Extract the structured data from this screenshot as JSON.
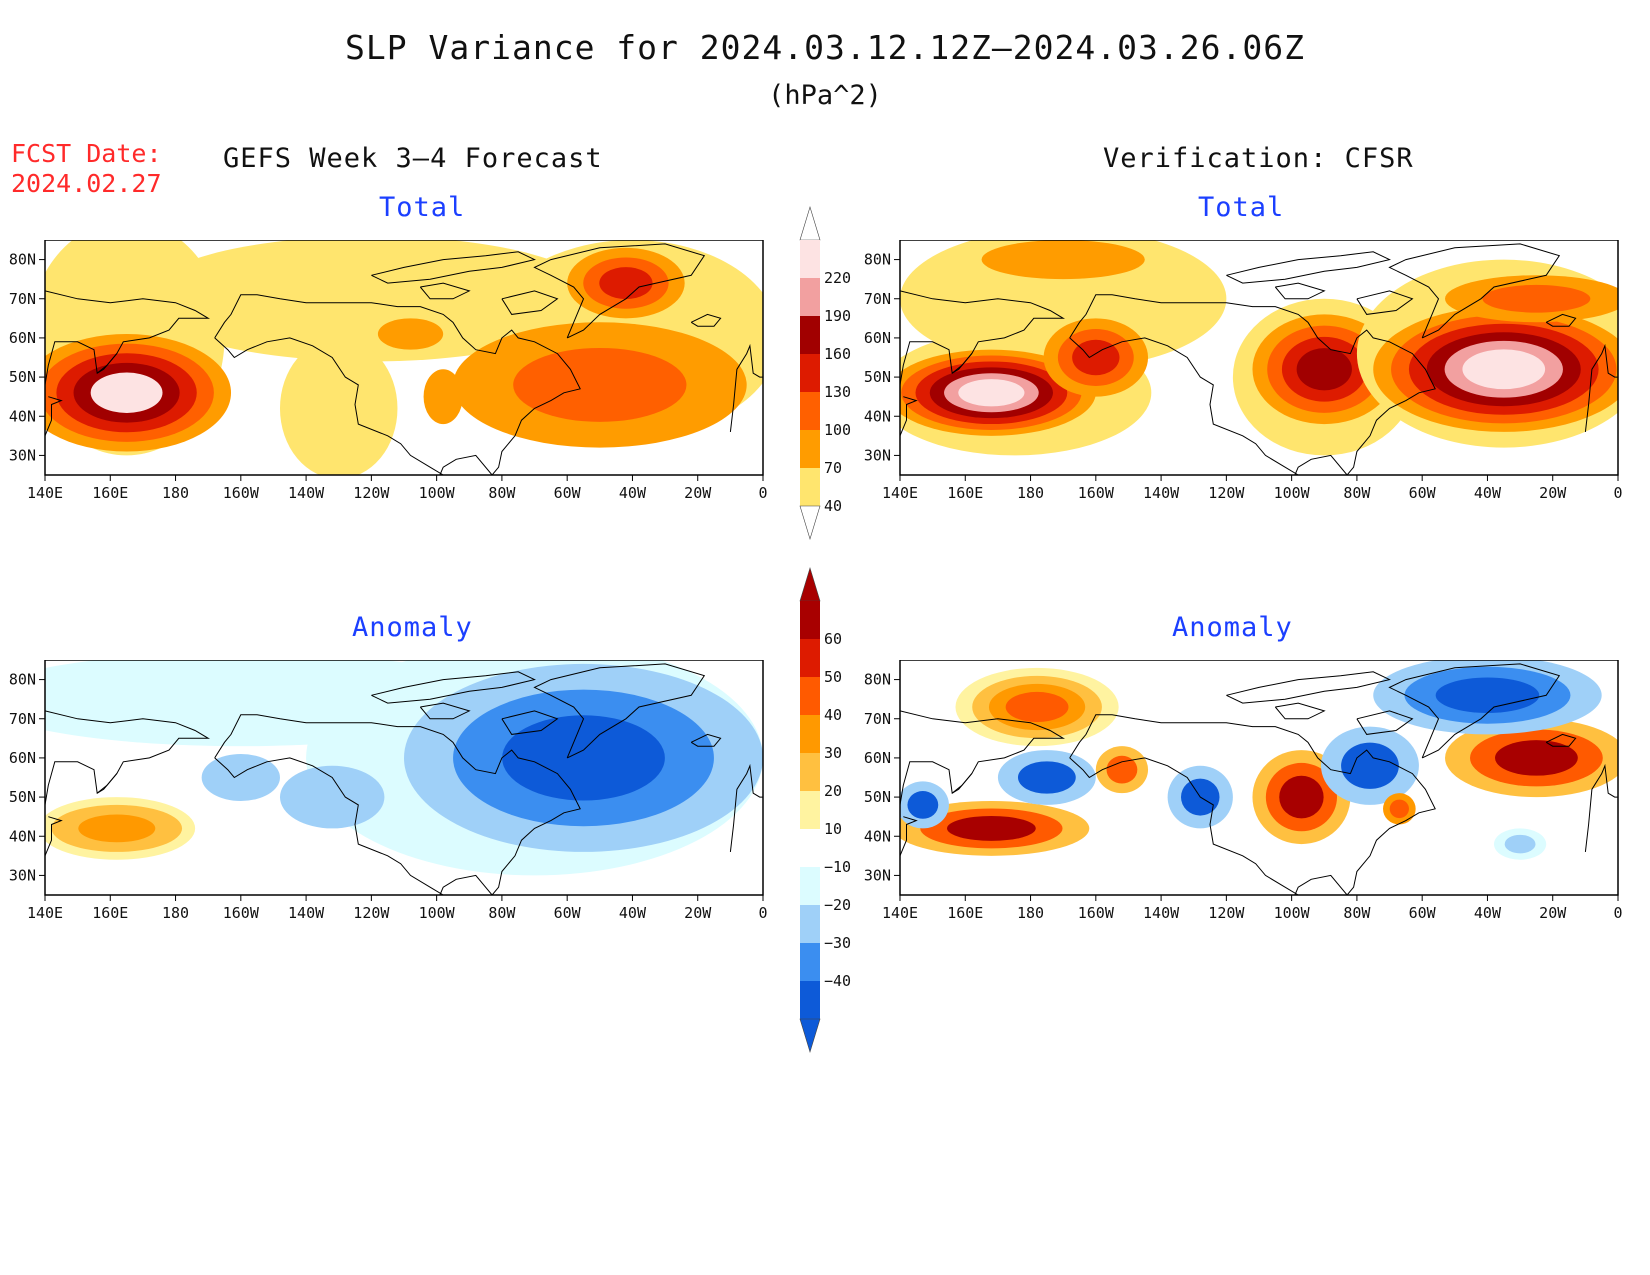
{
  "title": "SLP Variance for 2024.03.12.12Z–2024.03.26.06Z",
  "units": "(hPa^2)",
  "fcst_label": "FCST Date:",
  "fcst_date": "2024.02.27",
  "left_column_title": "GEFS Week 3–4 Forecast",
  "right_column_title": "Verification: CFSR",
  "panels": [
    {
      "id": "gefs-total",
      "subtitle": "Total"
    },
    {
      "id": "cfsr-total",
      "subtitle": "Total"
    },
    {
      "id": "gefs-anom",
      "subtitle": "Anomaly"
    },
    {
      "id": "cfsr-anom",
      "subtitle": "Anomaly"
    }
  ],
  "map_axes": {
    "lon_labels": [
      "140E",
      "160E",
      "180",
      "160W",
      "140W",
      "120W",
      "100W",
      "80W",
      "60W",
      "40W",
      "20W",
      "0"
    ],
    "lat_labels": [
      "80N",
      "70N",
      "60N",
      "50N",
      "40N",
      "30N"
    ],
    "lon_range": [
      140,
      360
    ],
    "lat_range": [
      25,
      85
    ]
  },
  "colorbar_total": {
    "levels": [
      "220",
      "190",
      "160",
      "130",
      "100",
      "70",
      "40"
    ],
    "colors": [
      "#fde3e3",
      "#f2a0a0",
      "#a10000",
      "#dd1b00",
      "#ff6000",
      "#ff9c00",
      "#ffe56e"
    ]
  },
  "colorbar_anomaly": {
    "levels": [
      "60",
      "50",
      "40",
      "30",
      "20",
      "10",
      "−10",
      "−20",
      "−30",
      "−40"
    ],
    "colors": [
      "#a80000",
      "#dd1b00",
      "#ff5a00",
      "#ff9900",
      "#ffc040",
      "#fff3a0",
      "#ffffff",
      "#dcfcff",
      "#9fd0f8",
      "#3b8ef0",
      "#0d5ad8"
    ]
  },
  "color_scale": {
    "land_outline": "#000000",
    "frame": "#000000"
  }
}
